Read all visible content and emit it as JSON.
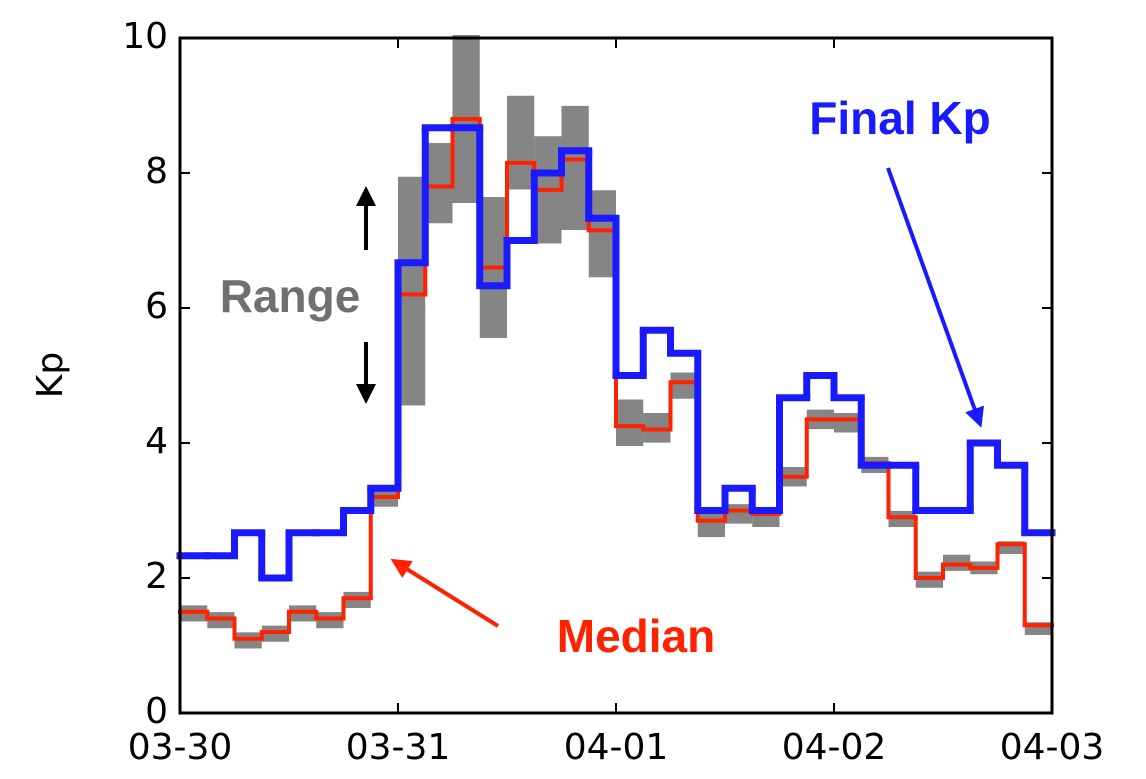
{
  "chart_data": {
    "type": "step",
    "y_label": "Kp",
    "xlim": [
      0,
      4
    ],
    "ylim": [
      0,
      10
    ],
    "xticks": [
      {
        "value": 0,
        "label": "03-30"
      },
      {
        "value": 1,
        "label": "03-31"
      },
      {
        "value": 2,
        "label": "04-01"
      },
      {
        "value": 3,
        "label": "04-02"
      },
      {
        "value": 4,
        "label": "04-03"
      }
    ],
    "yticks": [
      0,
      2,
      4,
      6,
      8,
      10
    ],
    "x": [
      0,
      0.125,
      0.25,
      0.375,
      0.5,
      0.625,
      0.75,
      0.875,
      1,
      1.125,
      1.25,
      1.375,
      1.5,
      1.625,
      1.75,
      1.875,
      2,
      2.125,
      2.25,
      2.375,
      2.5,
      2.625,
      2.75,
      2.875,
      3,
      3.125,
      3.25,
      3.375,
      3.5,
      3.625,
      3.75,
      3.875
    ],
    "range": {
      "name": "Range",
      "color": "#707070",
      "low": [
        1.4,
        1.3,
        1.0,
        1.1,
        1.4,
        1.3,
        1.6,
        3.1,
        4.6,
        7.3,
        7.6,
        5.6,
        7.8,
        7.0,
        7.2,
        6.5,
        4.0,
        4.05,
        4.7,
        2.65,
        2.85,
        2.8,
        3.4,
        4.25,
        4.2,
        3.6,
        2.8,
        1.9,
        2.15,
        2.1,
        2.4,
        1.2
      ],
      "high": [
        1.55,
        1.45,
        1.15,
        1.25,
        1.55,
        1.45,
        1.75,
        3.3,
        7.9,
        8.4,
        10,
        7.6,
        9.1,
        8.5,
        8.95,
        7.7,
        4.6,
        4.4,
        5.0,
        3.0,
        3.05,
        3.0,
        3.6,
        4.45,
        4.4,
        3.75,
        2.95,
        2.05,
        2.3,
        2.2,
        2.5,
        1.3
      ]
    },
    "series": [
      {
        "name": "Median",
        "color": "#ff2200",
        "values": [
          1.5,
          1.4,
          1.1,
          1.2,
          1.5,
          1.4,
          1.7,
          3.2,
          6.2,
          7.8,
          8.8,
          6.6,
          8.15,
          7.75,
          8.2,
          7.15,
          4.25,
          4.2,
          4.9,
          2.85,
          3.0,
          2.95,
          3.5,
          4.35,
          4.35,
          3.7,
          2.9,
          2.0,
          2.2,
          2.15,
          2.5,
          1.3
        ]
      },
      {
        "name": "Final Kp",
        "color": "#1a1aff",
        "values": [
          2.33,
          2.33,
          2.67,
          2.0,
          2.67,
          2.67,
          3.0,
          3.33,
          6.67,
          8.67,
          8.67,
          6.33,
          7.0,
          8.0,
          8.33,
          7.33,
          5.0,
          5.67,
          5.33,
          3.0,
          3.33,
          3.0,
          4.67,
          5.0,
          4.67,
          3.67,
          3.67,
          3.0,
          3.0,
          4.0,
          3.67,
          2.67
        ]
      }
    ]
  }
}
